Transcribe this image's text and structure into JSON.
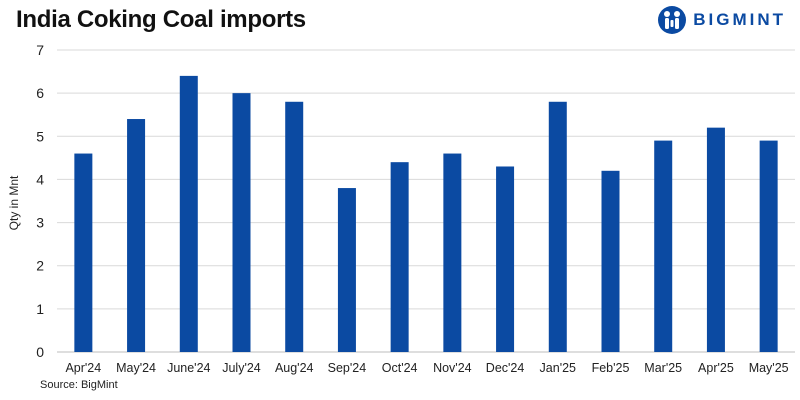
{
  "title": "India Coking Coal imports",
  "brand": {
    "name": "BIGMINT",
    "icon": "bigmint-logo-icon",
    "color": "#0b4aa2"
  },
  "source": "Source: BigMint",
  "chart_data": {
    "type": "bar",
    "title": "India Coking Coal imports",
    "xlabel": "",
    "ylabel": "Qty in Mnt",
    "categories": [
      "Apr'24",
      "May'24",
      "June'24",
      "July'24",
      "Aug'24",
      "Sep'24",
      "Oct'24",
      "Nov'24",
      "Dec'24",
      "Jan'25",
      "Feb'25",
      "Mar'25",
      "Apr'25",
      "May'25"
    ],
    "values": [
      4.6,
      5.4,
      6.4,
      6.0,
      5.8,
      3.8,
      4.4,
      4.6,
      4.3,
      5.8,
      4.2,
      4.9,
      5.2,
      4.9
    ],
    "ylim": [
      0,
      7
    ],
    "yticks": [
      "0",
      "1",
      "2",
      "3",
      "4",
      "5",
      "6",
      "7"
    ],
    "grid": true,
    "legend": "none",
    "bar_color": "#0b4aa2"
  }
}
